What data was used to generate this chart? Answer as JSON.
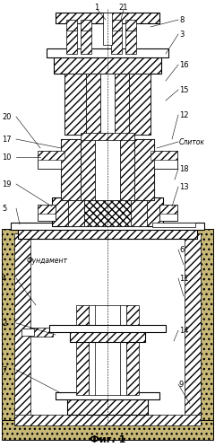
{
  "title": "Фиг. 1",
  "bg_color": "#ffffff",
  "fig_width": 2.4,
  "fig_height": 4.98,
  "dpi": 100
}
